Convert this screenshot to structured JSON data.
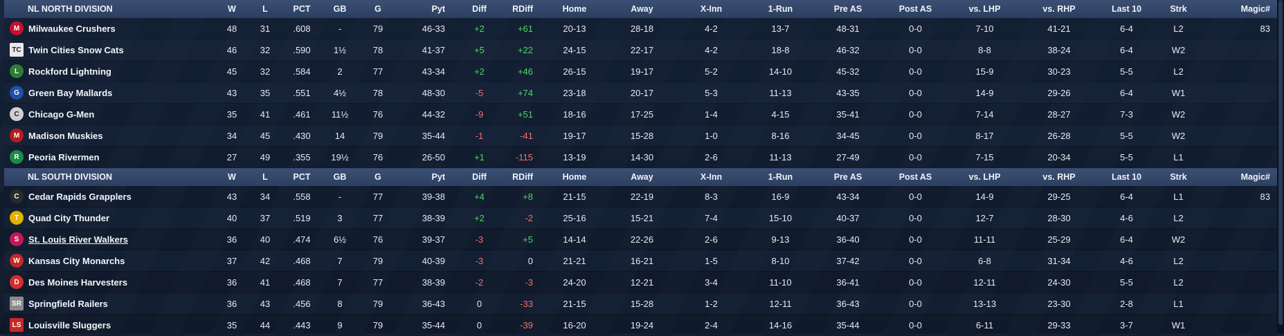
{
  "columns": [
    "W",
    "L",
    "PCT",
    "GB",
    "G",
    "Pyt",
    "Diff",
    "RDiff",
    "Home",
    "Away",
    "X-Inn",
    "1-Run",
    "Pre AS",
    "Post AS",
    "vs. LHP",
    "vs. RHP",
    "Last 10",
    "Strk",
    "Magic#"
  ],
  "divisions": [
    {
      "title": "NL NORTH DIVISION",
      "teams": [
        {
          "name": "Milwaukee Crushers",
          "logo_color": "#c8102e",
          "logo_glyph": "M",
          "W": "48",
          "L": "31",
          "PCT": ".608",
          "GB": "-",
          "G": "79",
          "Pyt": "46-33",
          "Diff": "+2",
          "RDiff": "+61",
          "Home": "20-13",
          "Away": "28-18",
          "XInn": "4-2",
          "OneRun": "13-7",
          "PreAS": "48-31",
          "PostAS": "0-0",
          "vsLHP": "7-10",
          "vsRHP": "41-21",
          "Last10": "6-4",
          "Strk": "L2",
          "Magic": "83"
        },
        {
          "name": "Twin Cities Snow Cats",
          "logo_color": "#e8e8e8",
          "logo_glyph": "TC",
          "W": "46",
          "L": "32",
          "PCT": ".590",
          "GB": "1½",
          "G": "78",
          "Pyt": "41-37",
          "Diff": "+5",
          "RDiff": "+22",
          "Home": "24-15",
          "Away": "22-17",
          "XInn": "4-2",
          "OneRun": "18-8",
          "PreAS": "46-32",
          "PostAS": "0-0",
          "vsLHP": "8-8",
          "vsRHP": "38-24",
          "Last10": "6-4",
          "Strk": "W2",
          "Magic": ""
        },
        {
          "name": "Rockford Lightning",
          "logo_color": "#2e7d32",
          "logo_glyph": "L",
          "W": "45",
          "L": "32",
          "PCT": ".584",
          "GB": "2",
          "G": "77",
          "Pyt": "43-34",
          "Diff": "+2",
          "RDiff": "+46",
          "Home": "26-15",
          "Away": "19-17",
          "XInn": "5-2",
          "OneRun": "14-10",
          "PreAS": "45-32",
          "PostAS": "0-0",
          "vsLHP": "15-9",
          "vsRHP": "30-23",
          "Last10": "5-5",
          "Strk": "L2",
          "Magic": ""
        },
        {
          "name": "Green Bay Mallards",
          "logo_color": "#1f4fa8",
          "logo_glyph": "G",
          "W": "43",
          "L": "35",
          "PCT": ".551",
          "GB": "4½",
          "G": "78",
          "Pyt": "48-30",
          "Diff": "-5",
          "RDiff": "+74",
          "Home": "23-18",
          "Away": "20-17",
          "XInn": "5-3",
          "OneRun": "11-13",
          "PreAS": "43-35",
          "PostAS": "0-0",
          "vsLHP": "14-9",
          "vsRHP": "29-26",
          "Last10": "6-4",
          "Strk": "W1",
          "Magic": ""
        },
        {
          "name": "Chicago G-Men",
          "logo_color": "#d0d0d0",
          "logo_glyph": "C",
          "W": "35",
          "L": "41",
          "PCT": ".461",
          "GB": "11½",
          "G": "76",
          "Pyt": "44-32",
          "Diff": "-9",
          "RDiff": "+51",
          "Home": "18-16",
          "Away": "17-25",
          "XInn": "1-4",
          "OneRun": "4-15",
          "PreAS": "35-41",
          "PostAS": "0-0",
          "vsLHP": "7-14",
          "vsRHP": "28-27",
          "Last10": "7-3",
          "Strk": "W2",
          "Magic": ""
        },
        {
          "name": "Madison Muskies",
          "logo_color": "#b71c1c",
          "logo_glyph": "M",
          "W": "34",
          "L": "45",
          "PCT": ".430",
          "GB": "14",
          "G": "79",
          "Pyt": "35-44",
          "Diff": "-1",
          "RDiff": "-41",
          "Home": "19-17",
          "Away": "15-28",
          "XInn": "1-0",
          "OneRun": "8-16",
          "PreAS": "34-45",
          "PostAS": "0-0",
          "vsLHP": "8-17",
          "vsRHP": "26-28",
          "Last10": "5-5",
          "Strk": "W2",
          "Magic": ""
        },
        {
          "name": "Peoria Rivermen",
          "logo_color": "#1b8a4a",
          "logo_glyph": "R",
          "W": "27",
          "L": "49",
          "PCT": ".355",
          "GB": "19½",
          "G": "76",
          "Pyt": "26-50",
          "Diff": "+1",
          "RDiff": "-115",
          "Home": "13-19",
          "Away": "14-30",
          "XInn": "2-6",
          "OneRun": "11-13",
          "PreAS": "27-49",
          "PostAS": "0-0",
          "vsLHP": "7-15",
          "vsRHP": "20-34",
          "Last10": "5-5",
          "Strk": "L1",
          "Magic": ""
        }
      ]
    },
    {
      "title": "NL SOUTH DIVISION",
      "teams": [
        {
          "name": "Cedar Rapids Grapplers",
          "logo_color": "#2b2b2b",
          "logo_glyph": "C",
          "W": "43",
          "L": "34",
          "PCT": ".558",
          "GB": "-",
          "G": "77",
          "Pyt": "39-38",
          "Diff": "+4",
          "RDiff": "+8",
          "Home": "21-15",
          "Away": "22-19",
          "XInn": "8-3",
          "OneRun": "16-9",
          "PreAS": "43-34",
          "PostAS": "0-0",
          "vsLHP": "14-9",
          "vsRHP": "29-25",
          "Last10": "6-4",
          "Strk": "L1",
          "Magic": "83"
        },
        {
          "name": "Quad City Thunder",
          "logo_color": "#e0b100",
          "logo_glyph": "T",
          "W": "40",
          "L": "37",
          "PCT": ".519",
          "GB": "3",
          "G": "77",
          "Pyt": "38-39",
          "Diff": "+2",
          "RDiff": "-2",
          "Home": "25-16",
          "Away": "15-21",
          "XInn": "7-4",
          "OneRun": "15-10",
          "PreAS": "40-37",
          "PostAS": "0-0",
          "vsLHP": "12-7",
          "vsRHP": "28-30",
          "Last10": "4-6",
          "Strk": "L2",
          "Magic": ""
        },
        {
          "name": "St. Louis River Walkers",
          "logo_color": "#c2185b",
          "logo_glyph": "S",
          "W": "36",
          "L": "40",
          "PCT": ".474",
          "GB": "6½",
          "G": "76",
          "Pyt": "39-37",
          "Diff": "-3",
          "RDiff": "+5",
          "Home": "14-14",
          "Away": "22-26",
          "XInn": "2-6",
          "OneRun": "9-13",
          "PreAS": "36-40",
          "PostAS": "0-0",
          "vsLHP": "11-11",
          "vsRHP": "25-29",
          "Last10": "6-4",
          "Strk": "W2",
          "Magic": ""
        },
        {
          "name": "Kansas City Monarchs",
          "logo_color": "#c62828",
          "logo_glyph": "W",
          "W": "37",
          "L": "42",
          "PCT": ".468",
          "GB": "7",
          "G": "79",
          "Pyt": "40-39",
          "Diff": "-3",
          "RDiff": "0",
          "Home": "21-21",
          "Away": "16-21",
          "XInn": "1-5",
          "OneRun": "8-10",
          "PreAS": "37-42",
          "PostAS": "0-0",
          "vsLHP": "6-8",
          "vsRHP": "31-34",
          "Last10": "4-6",
          "Strk": "L2",
          "Magic": ""
        },
        {
          "name": "Des Moines Harvesters",
          "logo_color": "#d32f2f",
          "logo_glyph": "D",
          "W": "36",
          "L": "41",
          "PCT": ".468",
          "GB": "7",
          "G": "77",
          "Pyt": "38-39",
          "Diff": "-2",
          "RDiff": "-3",
          "Home": "24-20",
          "Away": "12-21",
          "XInn": "3-4",
          "OneRun": "11-10",
          "PreAS": "36-41",
          "PostAS": "0-0",
          "vsLHP": "12-11",
          "vsRHP": "24-30",
          "Last10": "5-5",
          "Strk": "L2",
          "Magic": ""
        },
        {
          "name": "Springfield Railers",
          "logo_color": "#8a8a8a",
          "logo_glyph": "SR",
          "W": "36",
          "L": "43",
          "PCT": ".456",
          "GB": "8",
          "G": "79",
          "Pyt": "36-43",
          "Diff": "0",
          "RDiff": "-33",
          "Home": "21-15",
          "Away": "15-28",
          "XInn": "1-2",
          "OneRun": "12-11",
          "PreAS": "36-43",
          "PostAS": "0-0",
          "vsLHP": "13-13",
          "vsRHP": "23-30",
          "Last10": "2-8",
          "Strk": "L1",
          "Magic": ""
        },
        {
          "name": "Louisville Sluggers",
          "logo_color": "#c62828",
          "logo_glyph": "LS",
          "W": "35",
          "L": "44",
          "PCT": ".443",
          "GB": "9",
          "G": "79",
          "Pyt": "35-44",
          "Diff": "0",
          "RDiff": "-39",
          "Home": "16-20",
          "Away": "19-24",
          "XInn": "2-4",
          "OneRun": "14-16",
          "PreAS": "35-44",
          "PostAS": "0-0",
          "vsLHP": "6-11",
          "vsRHP": "29-33",
          "Last10": "3-7",
          "Strk": "W1",
          "Magic": ""
        }
      ]
    }
  ]
}
